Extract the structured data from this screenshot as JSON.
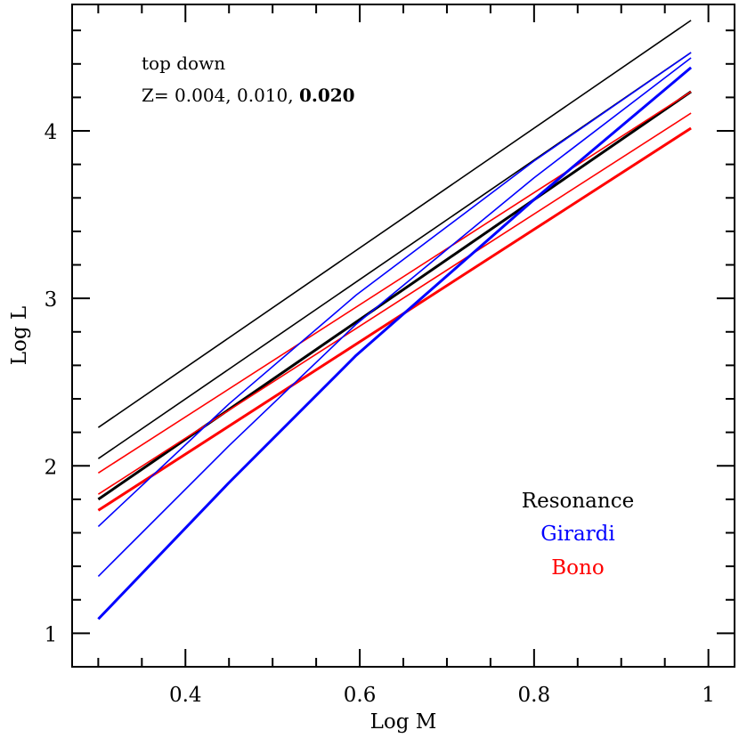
{
  "chart_data": {
    "type": "line",
    "title": "",
    "xlabel": "Log M",
    "ylabel": "Log L",
    "xlim": [
      0.27,
      1.03
    ],
    "ylim": [
      0.8,
      4.755
    ],
    "xticks": {
      "major": [
        0.4,
        0.6,
        0.8,
        1.0
      ],
      "labels": [
        "0.4",
        "0.6",
        "0.8",
        "1"
      ],
      "minor_step": 0.05
    },
    "yticks": {
      "major": [
        1,
        2,
        3,
        4
      ],
      "labels": [
        "1",
        "2",
        "3",
        "4"
      ],
      "minor_step": 0.2
    },
    "grid": false,
    "annotations": [
      {
        "text": "top down",
        "x": 0.35,
        "y": 4.39
      },
      {
        "text_prefix": "Z= 0.004, 0.010, ",
        "text_bold": "0.020",
        "x": 0.35,
        "y": 4.19
      }
    ],
    "legend": {
      "position": "lower right",
      "entries": [
        {
          "label": "Resonance",
          "color": "#000000"
        },
        {
          "label": "Girardi",
          "color": "#0000ff"
        },
        {
          "label": "Bono",
          "color": "#ff0000"
        }
      ]
    },
    "series": [
      {
        "name": "Resonance Z=0.004",
        "group": "Resonance",
        "Z": 0.004,
        "color": "#000000",
        "width": 1.6,
        "x": [
          0.3,
          0.98
        ],
        "y": [
          2.229,
          4.66
        ]
      },
      {
        "name": "Resonance Z=0.010",
        "group": "Resonance",
        "Z": 0.01,
        "color": "#000000",
        "width": 1.6,
        "x": [
          0.3,
          0.98
        ],
        "y": [
          2.043,
          4.468
        ]
      },
      {
        "name": "Resonance Z=0.020",
        "group": "Resonance",
        "Z": 0.02,
        "color": "#000000",
        "width": 3.0,
        "x": [
          0.3,
          0.98
        ],
        "y": [
          1.8,
          4.234
        ]
      },
      {
        "name": "Bono Z=0.004",
        "group": "Bono",
        "Z": 0.004,
        "color": "#ff0000",
        "width": 1.6,
        "x": [
          0.3,
          0.98
        ],
        "y": [
          1.957,
          4.234
        ]
      },
      {
        "name": "Bono Z=0.010",
        "group": "Bono",
        "Z": 0.01,
        "color": "#ff0000",
        "width": 1.6,
        "x": [
          0.3,
          0.98
        ],
        "y": [
          1.83,
          4.106
        ]
      },
      {
        "name": "Bono Z=0.020",
        "group": "Bono",
        "Z": 0.02,
        "color": "#ff0000",
        "width": 3.0,
        "x": [
          0.3,
          0.98
        ],
        "y": [
          1.734,
          4.016
        ]
      },
      {
        "name": "Girardi Z=0.004",
        "group": "Girardi",
        "Z": 0.004,
        "color": "#0000ff",
        "width": 1.6,
        "x": [
          0.3,
          0.45,
          0.596,
          0.8,
          0.98
        ],
        "y": [
          1.638,
          2.37,
          3.02,
          3.82,
          4.468
        ]
      },
      {
        "name": "Girardi Z=0.010",
        "group": "Girardi",
        "Z": 0.01,
        "color": "#0000ff",
        "width": 1.6,
        "x": [
          0.3,
          0.45,
          0.596,
          0.8,
          0.98
        ],
        "y": [
          1.34,
          2.12,
          2.846,
          3.72,
          4.436
        ]
      },
      {
        "name": "Girardi Z=0.020",
        "group": "Girardi",
        "Z": 0.02,
        "color": "#0000ff",
        "width": 3.0,
        "x": [
          0.3,
          0.45,
          0.596,
          0.8,
          0.98
        ],
        "y": [
          1.085,
          1.9,
          2.66,
          3.59,
          4.378
        ]
      }
    ]
  },
  "text": {
    "xlabel": "Log M",
    "ylabel": "Log L",
    "annotation_line1": "top down",
    "annotation_line2_prefix": "Z= 0.004, 0.010, ",
    "annotation_line2_bold": "0.020",
    "legend_resonance": "Resonance",
    "legend_girardi": "Girardi",
    "legend_bono": "Bono"
  }
}
